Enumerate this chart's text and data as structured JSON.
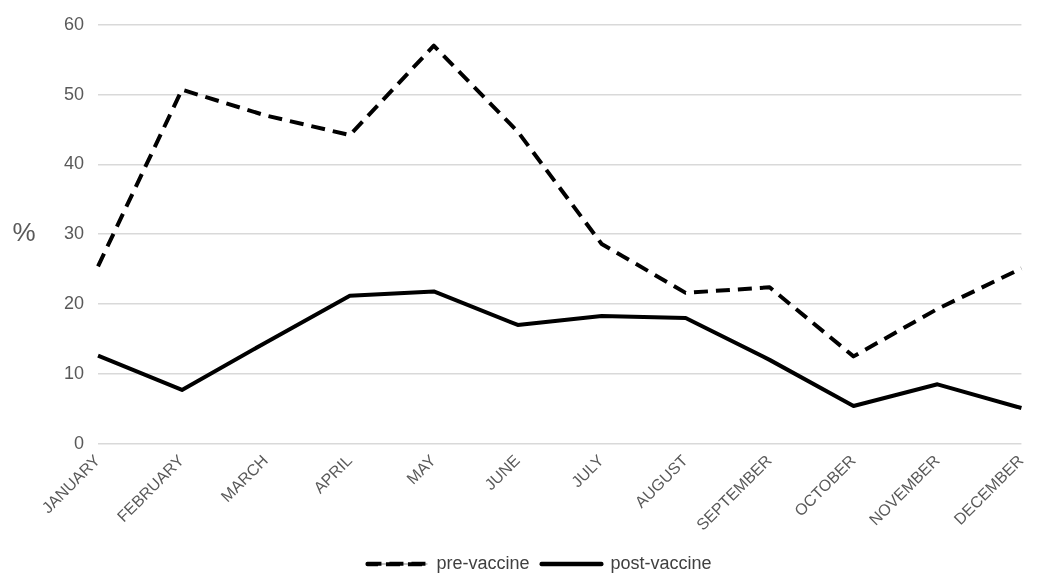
{
  "chart_data": {
    "type": "line",
    "ylabel": "%",
    "categories": [
      "JANUARY",
      "FEBRUARY",
      "MARCH",
      "APRIL",
      "MAY",
      "JUNE",
      "JULY",
      "AUGUST",
      "SEPTEMBER",
      "OCTOBER",
      "NOVEMBER",
      "DECEMBER"
    ],
    "series": [
      {
        "name": "pre-vaccine",
        "color": "#000000",
        "line_style": "dashed",
        "values": [
          25.4,
          50.7,
          47,
          44.2,
          57,
          44.7,
          28.6,
          21.6,
          22.4,
          12.5,
          19.3,
          25.1
        ]
      },
      {
        "name": "post-vaccine",
        "color": "#000000",
        "line_style": "solid",
        "values": [
          12.6,
          7.7,
          14.5,
          21.2,
          21.8,
          17,
          18.3,
          18,
          12,
          5.4,
          8.5,
          5.1
        ]
      }
    ],
    "ylim": [
      0,
      60
    ],
    "yticks": [
      0,
      10,
      20,
      30,
      40,
      50,
      60
    ],
    "grid": "y",
    "legend": "bottom",
    "marker": "none"
  }
}
